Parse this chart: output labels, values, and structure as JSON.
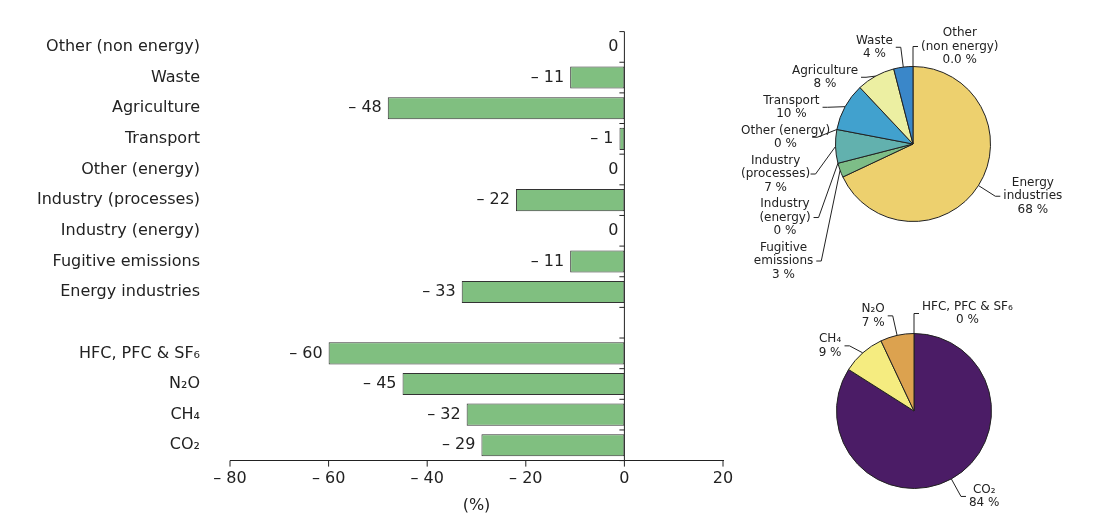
{
  "chart_data": [
    {
      "type": "bar",
      "orientation": "horizontal",
      "categories": [
        "Other (non energy)",
        "Waste",
        "Agriculture",
        "Transport",
        "Other (energy)",
        "Industry (processes)",
        "Industry (energy)",
        "Fugitive emissions",
        "Energy industries",
        null,
        "HFC, PFC & SF₆",
        "N₂O",
        "CH₄",
        "CO₂"
      ],
      "values": [
        0,
        -11,
        -48,
        -1,
        0,
        -22,
        0,
        -11,
        -33,
        null,
        -60,
        -45,
        -32,
        -29
      ],
      "value_labels": [
        "0",
        "– 11",
        "– 48",
        "– 1",
        "0",
        "– 22",
        "0",
        "– 11",
        "– 33",
        null,
        "– 60",
        "– 45",
        "– 32",
        "– 29"
      ],
      "color": "#80bf80",
      "xlim": [
        -80,
        20
      ],
      "xticks": [
        {
          "value": -80,
          "label": "– 80"
        },
        {
          "value": -60,
          "label": "– 60"
        },
        {
          "value": -40,
          "label": "– 40"
        },
        {
          "value": -20,
          "label": "– 20"
        },
        0,
        20
      ],
      "xlabel": "(%)",
      "grid": false,
      "legend": false,
      "ref_lines": [
        {
          "axis": "x",
          "value": 0
        }
      ]
    },
    {
      "type": "pie",
      "categories": [
        "Energy industries",
        "Fugitive emissions",
        "Industry (energy)",
        "Industry (processes)",
        "Other (energy)",
        "Transport",
        "Agriculture",
        "Waste",
        "Other (non energy)"
      ],
      "values": [
        68,
        3,
        0,
        7,
        0,
        10,
        8,
        4,
        0
      ],
      "value_labels": [
        "68 %",
        "3 %",
        "0 %",
        "7 %",
        "0 %",
        "10 %",
        "8 %",
        "4 %",
        "0.0 %"
      ],
      "colors": [
        "#edd06e",
        "#7dbd87",
        "#9fd0a0",
        "#62b1ae",
        "#5aa8b8",
        "#41a1ce",
        "#ecefa2",
        "#3a87c9",
        "#2e6fb5"
      ],
      "legend": false
    },
    {
      "type": "pie",
      "categories": [
        "CO₂",
        "CH₄",
        "N₂O",
        "HFC, PFC & SF₆"
      ],
      "values": [
        84,
        9,
        7,
        0
      ],
      "value_labels": [
        "84 %",
        "9 %",
        "7 %",
        "0 %"
      ],
      "colors": [
        "#4b1c66",
        "#f5ec80",
        "#dca24f",
        "#c0606a"
      ],
      "legend": false
    }
  ]
}
